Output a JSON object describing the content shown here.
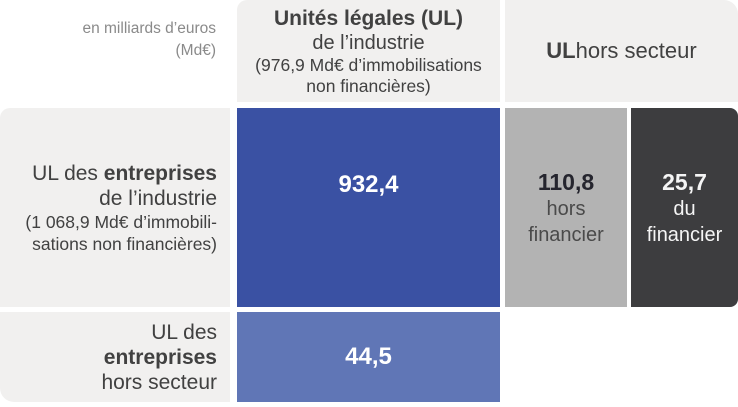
{
  "unit_note": {
    "line1": "en milliards d’euros",
    "line2": "(Md€)"
  },
  "headers": {
    "industry_ul": {
      "line1_bold": "Unités légales (UL)",
      "line2": "de l’industrie",
      "line3": "(976,9 Md€ d’immobilisations",
      "line4": "non financières)"
    },
    "outside_ul": {
      "bold": "UL",
      "rest": " hors secteur"
    }
  },
  "row_labels": {
    "industry_enterprises": {
      "line1_prefix": "UL des ",
      "line1_bold": "entreprises",
      "line2": "de l’industrie",
      "line3": "(1 068,9 Md€ d’immobili-",
      "line4": "sations non financières)"
    },
    "outside_enterprises": {
      "line1": "UL des",
      "line2_bold": "entreprises",
      "line3": "hors secteur"
    }
  },
  "cells": {
    "industry_in_industry": {
      "value": "932,4"
    },
    "industry_outside_nonfinancial": {
      "value": "110,8",
      "line2": "hors",
      "line3": "financier"
    },
    "industry_outside_financial": {
      "value": "25,7",
      "line2": "du",
      "line3": "financier"
    },
    "outside_in_industry": {
      "value": "44,5"
    }
  },
  "colors": {
    "primary_blue": "#3a51a3",
    "light_blue": "#6076b6",
    "gray_cell": "#b3b3b3",
    "dark_cell": "#3d3d3f",
    "label_background": "#f1f0ef",
    "text_dark": "#414141",
    "note_gray": "#8a8a8a",
    "value_on_gray": "#25252e"
  },
  "chart_data": {
    "type": "table",
    "title": "",
    "unit": "en milliards d’euros (Md€)",
    "columns": [
      "Unités légales (UL) de l’industrie (976,9 Md€ d’immobilisations non financières)",
      "UL hors secteur — hors financier",
      "UL hors secteur — du financier"
    ],
    "rows": [
      "UL des entreprises de l’industrie (1 068,9 Md€ d’immobilisations non financières)",
      "UL des entreprises hors secteur"
    ],
    "values": [
      [
        932.4,
        110.8,
        25.7
      ],
      [
        44.5,
        null,
        null
      ]
    ],
    "legend_position": "none",
    "grid": false
  }
}
